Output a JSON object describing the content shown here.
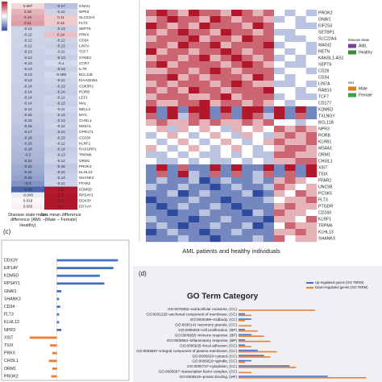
{
  "chart_data": [
    {
      "type": "heatmap",
      "columns": [
        "Disease state mean difference (AML – Healthy)",
        "Sex mean difference (Male – Female)"
      ],
      "rows": [
        "GNAI1",
        "NPR3",
        "SLC22A4",
        "FLT3",
        "SEPT6",
        "PRKX",
        "CD34",
        "LIN7A",
        "TCF7",
        "SYNE2",
        "CCR7",
        "IL7R",
        "BCL11B",
        "KIAA0226L",
        "CDK5R1",
        "RORB",
        "LEF1",
        "MAL",
        "NELL2",
        "MYC",
        "CHI3L1",
        "MS4A1",
        "GPR171",
        "CD160",
        "KLRF1",
        "RASGRP1",
        "TRPM6",
        "ORM1",
        "PROK2",
        "KLHL13",
        "SHANK3",
        "FFAR2",
        "KDM5D",
        "RPS4Y1",
        "DDX3Y",
        "EIF1AY"
      ],
      "values": [
        [
          0.087,
          -0.17
        ],
        [
          0.16,
          -0.12
        ],
        [
          0.19,
          0.11
        ],
        [
          0.21,
          0.12
        ],
        [
          -0.12,
          -0.13
        ],
        [
          -0.12,
          0.14
        ],
        [
          -0.12,
          -0.12
        ],
        [
          -0.12,
          -0.13
        ],
        [
          -0.13,
          -0.11
        ],
        [
          -0.13,
          -0.13
        ],
        [
          -0.13,
          -0.1
        ],
        [
          -0.13,
          -0.13
        ],
        [
          -0.13,
          -0.099
        ],
        [
          -0.13,
          -0.12
        ],
        [
          -0.14,
          -0.13
        ],
        [
          -0.14,
          -0.14
        ],
        [
          -0.14,
          -0.12
        ],
        [
          -0.14,
          -0.13
        ],
        [
          -0.14,
          -0.11
        ],
        [
          -0.15,
          -0.13
        ],
        [
          -0.15,
          -0.13
        ],
        [
          -0.16,
          -0.12
        ],
        [
          -0.17,
          -0.14
        ],
        [
          -0.18,
          -0.13
        ],
        [
          -0.18,
          -0.12
        ],
        [
          -0.19,
          -0.14
        ],
        [
          -0.2,
          -0.13
        ],
        [
          -0.21,
          -0.12
        ],
        [
          -0.23,
          -0.15
        ],
        [
          -0.24,
          -0.14
        ],
        [
          -0.26,
          -0.13
        ],
        [
          -0.3,
          -0.12
        ],
        [
          -0.43,
          1.9
        ],
        [
          -0.045,
          2.1
        ],
        [
          0.019,
          2.5
        ],
        [
          0.033,
          2.7
        ]
      ],
      "clim": [
        -0.5,
        0.5
      ]
    },
    {
      "type": "heatmap",
      "x_label": "AML patients and healthy individuals",
      "rows": [
        "PROK2",
        "GNAI1",
        "EIF2S3",
        "SETBP1",
        "SLC22A4",
        "MAGI2",
        "RETN",
        "KANSL1-AS1",
        "SEPT6",
        "CD28",
        "CD34",
        "LIN7A",
        "RAB13",
        "TCF7",
        "CD177",
        "KDM5D",
        "TXLNGY",
        "BCL11B",
        "NPR3",
        "RORB",
        "KLRB1",
        "MS4A1",
        "ORM1",
        "CHI3L1",
        "XIST",
        "TSIX",
        "FFAR2",
        "UNC5B",
        "PCSK5",
        "FLT3",
        "PTGDR",
        "CD160",
        "KLRF1",
        "TRPM6",
        "KLHL13",
        "SHANK3"
      ],
      "values": [
        [
          2,
          3,
          2,
          1,
          3,
          2,
          2,
          1,
          3,
          2,
          1,
          2,
          0,
          -1,
          0,
          -1
        ],
        [
          1,
          2,
          3,
          2,
          2,
          1,
          3,
          2,
          1,
          2,
          2,
          1,
          -1,
          0,
          -1,
          0
        ],
        [
          3,
          2,
          1,
          2,
          1,
          3,
          2,
          2,
          2,
          1,
          3,
          2,
          0,
          0,
          -1,
          -1
        ],
        [
          2,
          1,
          2,
          3,
          2,
          2,
          1,
          3,
          2,
          2,
          1,
          2,
          -1,
          -1,
          0,
          0
        ],
        [
          1,
          2,
          2,
          2,
          3,
          1,
          2,
          2,
          1,
          3,
          2,
          2,
          0,
          -1,
          -1,
          0
        ],
        [
          2,
          2,
          1,
          3,
          2,
          2,
          3,
          1,
          2,
          2,
          2,
          3,
          -1,
          0,
          0,
          -1
        ],
        [
          3,
          1,
          2,
          2,
          1,
          2,
          2,
          3,
          2,
          1,
          2,
          2,
          0,
          -1,
          0,
          -1
        ],
        [
          1,
          2,
          2,
          1,
          2,
          3,
          1,
          2,
          3,
          2,
          1,
          2,
          -1,
          0,
          -1,
          0
        ],
        [
          2,
          3,
          1,
          2,
          2,
          2,
          2,
          1,
          2,
          3,
          2,
          1,
          0,
          -1,
          -1,
          0
        ],
        [
          1,
          1,
          2,
          2,
          1,
          2,
          3,
          2,
          1,
          2,
          2,
          2,
          -1,
          0,
          0,
          -1
        ],
        [
          2,
          2,
          3,
          1,
          2,
          1,
          2,
          2,
          2,
          1,
          3,
          2,
          0,
          -1,
          0,
          0
        ],
        [
          1,
          2,
          1,
          2,
          2,
          2,
          1,
          2,
          3,
          2,
          1,
          1,
          -1,
          -1,
          0,
          -1
        ],
        [
          2,
          1,
          2,
          1,
          3,
          2,
          2,
          1,
          2,
          2,
          2,
          3,
          0,
          0,
          -1,
          0
        ],
        [
          1,
          2,
          2,
          2,
          1,
          1,
          2,
          3,
          1,
          2,
          2,
          2,
          -1,
          0,
          -1,
          -1
        ],
        [
          2,
          1,
          1,
          2,
          2,
          3,
          1,
          2,
          2,
          1,
          2,
          1,
          0,
          -1,
          0,
          0
        ],
        [
          3,
          -2,
          3,
          -2,
          3,
          3,
          -2,
          3,
          -2,
          3,
          3,
          -2,
          3,
          -2,
          3,
          -2
        ],
        [
          2,
          -2,
          3,
          -1,
          2,
          3,
          -2,
          2,
          -2,
          3,
          2,
          -1,
          3,
          -2,
          2,
          -2
        ],
        [
          1,
          2,
          1,
          1,
          2,
          1,
          2,
          1,
          1,
          2,
          1,
          2,
          0,
          0,
          -1,
          0
        ],
        [
          0,
          1,
          -1,
          1,
          0,
          1,
          0,
          -1,
          1,
          0,
          1,
          0,
          2,
          1,
          2,
          1
        ],
        [
          -1,
          0,
          1,
          0,
          -1,
          0,
          1,
          0,
          -1,
          1,
          0,
          -1,
          1,
          2,
          1,
          2
        ],
        [
          0,
          -1,
          0,
          1,
          0,
          -1,
          0,
          1,
          0,
          -1,
          0,
          1,
          2,
          1,
          1,
          2
        ],
        [
          1,
          0,
          -1,
          0,
          1,
          0,
          -1,
          0,
          1,
          0,
          -1,
          0,
          1,
          2,
          2,
          1
        ],
        [
          -1,
          -1,
          0,
          -1,
          0,
          -1,
          -1,
          0,
          -1,
          0,
          -1,
          -1,
          2,
          2,
          1,
          1
        ],
        [
          0,
          -1,
          -1,
          0,
          -1,
          0,
          -1,
          -1,
          0,
          -1,
          0,
          -1,
          1,
          1,
          2,
          2
        ],
        [
          -2,
          3,
          -2,
          2,
          -2,
          -2,
          3,
          -2,
          3,
          -2,
          -2,
          3,
          -2,
          3,
          -2,
          3
        ],
        [
          -2,
          2,
          -2,
          3,
          -1,
          -2,
          2,
          -2,
          2,
          -2,
          -1,
          2,
          -2,
          2,
          -2,
          3
        ],
        [
          -2,
          -1,
          -2,
          -2,
          -1,
          -3,
          -2,
          -1,
          -2,
          -2,
          -1,
          -2,
          1,
          2,
          1,
          0
        ],
        [
          -1,
          -2,
          -2,
          -1,
          -2,
          -2,
          -3,
          -2,
          -1,
          -2,
          -2,
          -1,
          2,
          1,
          0,
          1
        ],
        [
          -2,
          -2,
          -1,
          -3,
          -2,
          -1,
          -2,
          -2,
          -2,
          -1,
          -3,
          -2,
          1,
          0,
          2,
          1
        ],
        [
          -3,
          -2,
          -2,
          -2,
          -1,
          -2,
          -2,
          -3,
          -2,
          -2,
          -2,
          -1,
          0,
          1,
          1,
          2
        ],
        [
          -2,
          -3,
          -2,
          -1,
          -2,
          -2,
          -1,
          -2,
          -3,
          -2,
          -2,
          -2,
          1,
          2,
          1,
          1
        ],
        [
          -2,
          -2,
          -3,
          -2,
          -2,
          -1,
          -2,
          -2,
          -2,
          -3,
          -1,
          -2,
          2,
          1,
          1,
          0
        ],
        [
          -1,
          -2,
          -2,
          -2,
          -3,
          -2,
          -2,
          -1,
          -2,
          -2,
          -2,
          -3,
          1,
          1,
          0,
          2
        ],
        [
          -2,
          -1,
          -2,
          -3,
          -2,
          -2,
          -1,
          -2,
          -2,
          -1,
          -3,
          -2,
          0,
          2,
          1,
          1
        ],
        [
          -3,
          -2,
          -1,
          -2,
          -2,
          -3,
          -2,
          -2,
          -1,
          -2,
          -2,
          -2,
          1,
          1,
          2,
          1
        ],
        [
          -2,
          -2,
          -2,
          -1,
          -2,
          -2,
          -3,
          -2,
          -2,
          -2,
          -1,
          -2,
          2,
          0,
          1,
          1
        ]
      ],
      "clim": [
        -3,
        3
      ],
      "legend": [
        {
          "title": "Disease State",
          "items": [
            {
              "name": "AML",
              "color": "#7b3f99"
            },
            {
              "name": "Healthy",
              "color": "#3a8a3a"
            }
          ]
        },
        {
          "title": "Sex",
          "items": [
            {
              "name": "Male",
              "color": "#e07b20"
            },
            {
              "name": "Female",
              "color": "#3aa04a"
            }
          ]
        }
      ]
    },
    {
      "type": "bar",
      "panel": "(c)",
      "categories": [
        "DDX3Y",
        "EIF1AY",
        "KDM5D",
        "RPS4Y1",
        "GNAI1",
        "SHANK3",
        "CD34",
        "FLT3",
        "KLHL13",
        "NPR3",
        "XIST",
        "TSIX",
        "PRKX",
        "CHI3L1",
        "ORM1",
        "PROK2"
      ],
      "values": [
        2.7,
        2.5,
        1.9,
        2.1,
        0.2,
        0.1,
        0.15,
        0.1,
        0.1,
        0.2,
        -1.2,
        -0.3,
        -0.2,
        -0.35,
        -0.2,
        -0.25
      ],
      "xlim": [
        -1.3,
        2.9
      ],
      "pos_color": "#4472c4",
      "neg_color": "#ed7d31"
    },
    {
      "type": "grouped_bar",
      "panel": "(d)",
      "title": "GO Term Category",
      "categories": [
        "GO:0070062~extracellular exosome, (CC)",
        "GO:0031225~anchored component of membrane, (CC)",
        "GO:0030496~midbody, (CC)",
        "GO:0030141~secretory granule, (CC)",
        "GO:0008283~cell proliferation, (BP)",
        "GO:0006955~immune response, (BP)",
        "GO:0006954~inflammatory response, (BP)",
        "GO:0005925~focal adhesion, (CC)",
        "GO:0005887~integral component of plasma membrane, (CC)",
        "GO:0005829~cytosol, (CC)",
        "GO:0005819~spindle, (CC)",
        "GO:0005737~cytoplasm, (CC)",
        "GO:0005667~transcription factor complex, (CC)",
        "GO:0005515~protein binding, (MF)"
      ],
      "series": [
        {
          "name": "Up-regulated genes (GO TERM)",
          "color": "#4472c4",
          "values": [
            0,
            1,
            2,
            0,
            1,
            2,
            1,
            1,
            3,
            4,
            2,
            8,
            0,
            14
          ]
        },
        {
          "name": "Down-regulated genes (GO TERM)",
          "color": "#ed7d31",
          "values": [
            12,
            2,
            1,
            2,
            3,
            4,
            5,
            2,
            6,
            5,
            1,
            9,
            2,
            20
          ]
        }
      ],
      "xlim": [
        0,
        22
      ]
    }
  ]
}
